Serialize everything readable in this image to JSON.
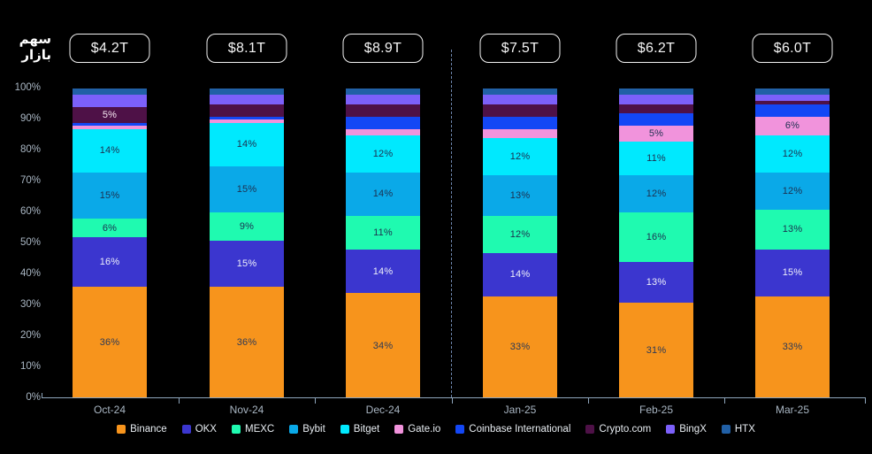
{
  "y_axis_title": {
    "line1": "سهم",
    "line2": "بازار"
  },
  "y_axis": {
    "ticks": [
      "100%",
      "90%",
      "80%",
      "70%",
      "60%",
      "50%",
      "40%",
      "30%",
      "20%",
      "10%",
      "0%"
    ]
  },
  "chart_data": {
    "type": "bar",
    "stacked": true,
    "title": "سهم بازار",
    "categories": [
      "Oct-24",
      "Nov-24",
      "Dec-24",
      "Jan-25",
      "Feb-25",
      "Mar-25"
    ],
    "totals": [
      "$4.2T",
      "$8.1T",
      "$8.9T",
      "$7.5T",
      "$6.2T",
      "$6.0T"
    ],
    "ylim": [
      0,
      100
    ],
    "grid": false,
    "legend_position": "bottom",
    "divider_between": [
      "Dec-24",
      "Jan-25"
    ],
    "label_rule": "segment percentage labels shown only when value >= 5%",
    "series": [
      {
        "name": "Binance",
        "color": "#f7941c",
        "label_color": "#2c3a57",
        "values": [
          36,
          36,
          34,
          33,
          31,
          33
        ]
      },
      {
        "name": "OKX",
        "color": "#3b36cf",
        "label_color": "#eef0fa",
        "values": [
          16,
          15,
          14,
          14,
          13,
          15
        ]
      },
      {
        "name": "MEXC",
        "color": "#1ffab0",
        "label_color": "#1d3050",
        "values": [
          6,
          9,
          11,
          12,
          16,
          13
        ]
      },
      {
        "name": "Bybit",
        "color": "#0aa9e8",
        "label_color": "#1d3050",
        "values": [
          15,
          15,
          14,
          13,
          12,
          12
        ]
      },
      {
        "name": "Bitget",
        "color": "#00e9fe",
        "label_color": "#1d3050",
        "values": [
          14,
          14,
          12,
          12,
          11,
          12
        ]
      },
      {
        "name": "Gate.io",
        "color": "#f193dc",
        "label_color": "#1d3050",
        "values": [
          1,
          1,
          2,
          3,
          5,
          6
        ]
      },
      {
        "name": "Coinbase International",
        "color": "#1347f5",
        "label_color": "#ffffff",
        "values": [
          1,
          1,
          4,
          4,
          4,
          4
        ]
      },
      {
        "name": "Crypto.com",
        "color": "#4e1147",
        "label_color": "#f6e7f2",
        "values": [
          5,
          4,
          4,
          4,
          3,
          1
        ]
      },
      {
        "name": "BingX",
        "color": "#7c60fa",
        "label_color": "#ffffff",
        "values": [
          4,
          3,
          3,
          3,
          3,
          2
        ]
      },
      {
        "name": "HTX",
        "color": "#2160a6",
        "label_color": "#ffffff",
        "values": [
          2,
          2,
          2,
          2,
          2,
          2
        ]
      }
    ]
  }
}
